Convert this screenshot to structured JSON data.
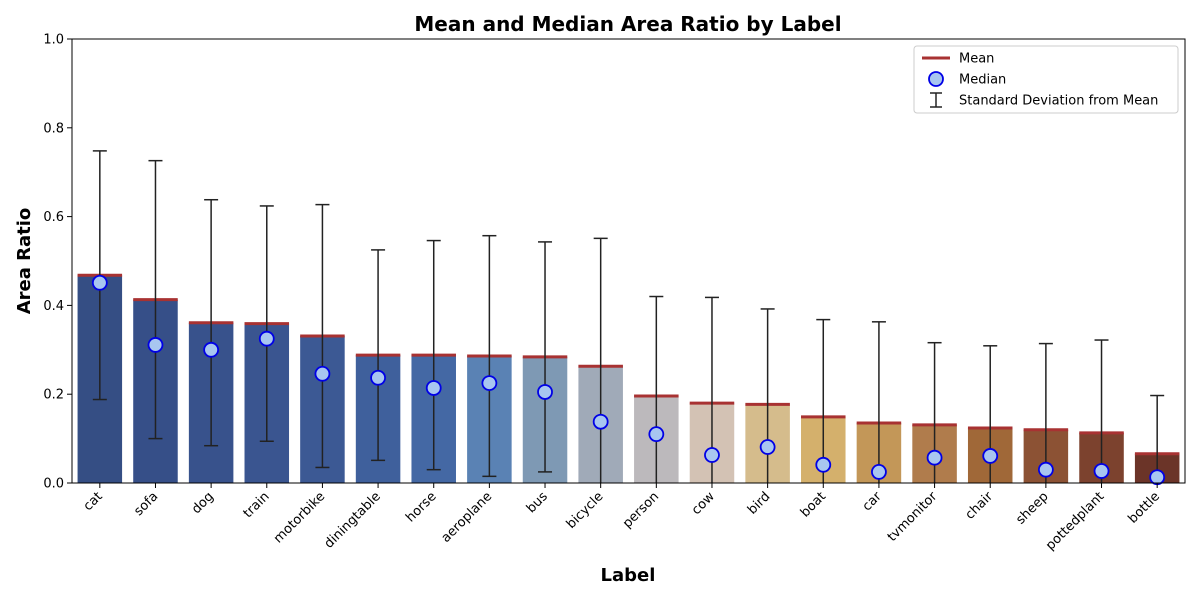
{
  "chart_data": {
    "type": "bar",
    "title": "Mean and Median Area Ratio by Label",
    "xlabel": "Label",
    "ylabel": "Area Ratio",
    "ylim": [
      0,
      1.0
    ],
    "yticks": [
      "0.0",
      "0.2",
      "0.4",
      "0.6",
      "0.8",
      "1.0"
    ],
    "categories": [
      "cat",
      "sofa",
      "dog",
      "train",
      "motorbike",
      "diningtable",
      "horse",
      "aeroplane",
      "bus",
      "bicycle",
      "person",
      "cow",
      "bird",
      "boat",
      "car",
      "tvmonitor",
      "chair",
      "sheep",
      "pottedplant",
      "bottle"
    ],
    "series": [
      {
        "name": "Mean",
        "values": [
          0.468,
          0.413,
          0.361,
          0.359,
          0.331,
          0.288,
          0.288,
          0.286,
          0.284,
          0.263,
          0.196,
          0.18,
          0.177,
          0.149,
          0.135,
          0.131,
          0.124,
          0.12,
          0.113,
          0.066
        ]
      },
      {
        "name": "Median",
        "values": [
          0.451,
          0.311,
          0.3,
          0.325,
          0.246,
          0.237,
          0.214,
          0.225,
          0.205,
          0.138,
          0.11,
          0.063,
          0.081,
          0.041,
          0.025,
          0.057,
          0.061,
          0.03,
          0.027,
          0.013
        ]
      },
      {
        "name": "Standard Deviation from Mean",
        "values": [
          0.28,
          0.313,
          0.277,
          0.265,
          0.296,
          0.237,
          0.258,
          0.271,
          0.259,
          0.288,
          0.224,
          0.238,
          0.215,
          0.219,
          0.228,
          0.185,
          0.185,
          0.194,
          0.209,
          0.131
        ]
      }
    ],
    "bar_colors": [
      "#354e84",
      "#364f88",
      "#38528c",
      "#3a5590",
      "#3c5994",
      "#3f609c",
      "#4468a4",
      "#5a82b4",
      "#7e99b4",
      "#a0aab8",
      "#bcb9bc",
      "#d3c2b4",
      "#d5bc8c",
      "#d4b06c",
      "#c39758",
      "#b07c4c",
      "#a06838",
      "#8c5234",
      "#7c422e",
      "#6b3428"
    ],
    "colors": {
      "mean_line": "#a83232",
      "median_face": "#a8c6f0",
      "median_edge": "#0000e6",
      "error_bar": "#222222"
    },
    "grid": false,
    "legend": {
      "placement": "top-right",
      "items": [
        {
          "label": "Mean",
          "icon": "line-icon"
        },
        {
          "label": "Median",
          "icon": "circle-marker-icon"
        },
        {
          "label": "Standard Deviation from Mean",
          "icon": "error-bar-icon"
        }
      ]
    }
  }
}
